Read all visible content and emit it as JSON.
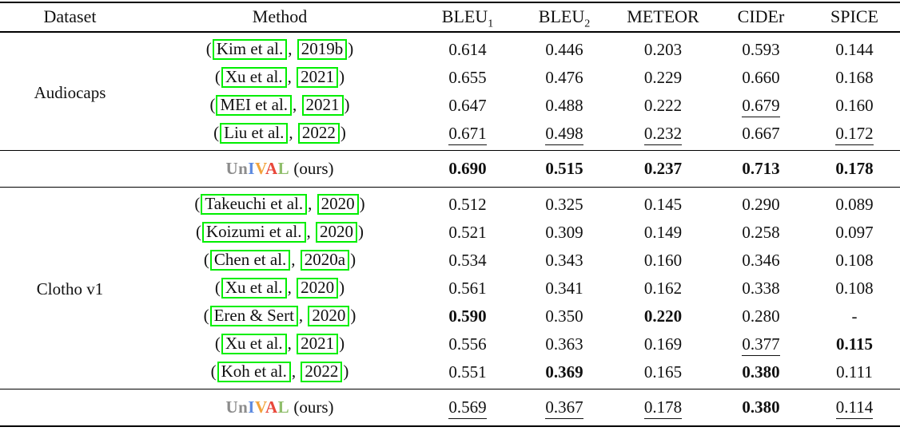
{
  "colors": {
    "citation_box_green": "#00ee00",
    "text": "#111111",
    "rule": "#000000"
  },
  "unival": {
    "parts": [
      {
        "t": "Un",
        "c": "#8C8C8C"
      },
      {
        "t": "I",
        "c": "#5E8BE0"
      },
      {
        "t": "V",
        "c": "#F2A33C"
      },
      {
        "t": "A",
        "c": "#E8483B"
      },
      {
        "t": "L",
        "c": "#8FBE6B"
      }
    ],
    "suffix": "(ours)"
  },
  "table": {
    "headers": [
      {
        "text": "Dataset"
      },
      {
        "text": "Method"
      },
      {
        "text": "BLEU",
        "sub": "1"
      },
      {
        "text": "BLEU",
        "sub": "2"
      },
      {
        "text": "METEOR"
      },
      {
        "text": "CIDEr"
      },
      {
        "text": "SPICE"
      }
    ],
    "sections": [
      {
        "dataset": "Audiocaps",
        "rows": [
          {
            "author": "Kim et al.",
            "year": "2019b",
            "values": [
              {
                "v": "0.614",
                "s": ""
              },
              {
                "v": "0.446",
                "s": ""
              },
              {
                "v": "0.203",
                "s": ""
              },
              {
                "v": "0.593",
                "s": ""
              },
              {
                "v": "0.144",
                "s": ""
              }
            ]
          },
          {
            "author": "Xu et al.",
            "year": "2021",
            "values": [
              {
                "v": "0.655",
                "s": ""
              },
              {
                "v": "0.476",
                "s": ""
              },
              {
                "v": "0.229",
                "s": ""
              },
              {
                "v": "0.660",
                "s": ""
              },
              {
                "v": "0.168",
                "s": ""
              }
            ]
          },
          {
            "author": "MEI et al.",
            "year": "2021",
            "values": [
              {
                "v": "0.647",
                "s": ""
              },
              {
                "v": "0.488",
                "s": ""
              },
              {
                "v": "0.222",
                "s": ""
              },
              {
                "v": "0.679",
                "s": "u"
              },
              {
                "v": "0.160",
                "s": ""
              }
            ]
          },
          {
            "author": "Liu et al.",
            "year": "2022",
            "values": [
              {
                "v": "0.671",
                "s": "u"
              },
              {
                "v": "0.498",
                "s": "u"
              },
              {
                "v": "0.232",
                "s": "u"
              },
              {
                "v": "0.667",
                "s": ""
              },
              {
                "v": "0.172",
                "s": "u"
              }
            ]
          }
        ],
        "ours": {
          "values": [
            {
              "v": "0.690",
              "s": "b"
            },
            {
              "v": "0.515",
              "s": "b"
            },
            {
              "v": "0.237",
              "s": "b"
            },
            {
              "v": "0.713",
              "s": "b"
            },
            {
              "v": "0.178",
              "s": "b"
            }
          ]
        }
      },
      {
        "dataset": "Clotho v1",
        "rows": [
          {
            "author": "Takeuchi et al.",
            "year": "2020",
            "values": [
              {
                "v": "0.512",
                "s": ""
              },
              {
                "v": "0.325",
                "s": ""
              },
              {
                "v": "0.145",
                "s": ""
              },
              {
                "v": "0.290",
                "s": ""
              },
              {
                "v": "0.089",
                "s": ""
              }
            ]
          },
          {
            "author": "Koizumi et al.",
            "year": "2020",
            "values": [
              {
                "v": "0.521",
                "s": ""
              },
              {
                "v": "0.309",
                "s": ""
              },
              {
                "v": "0.149",
                "s": ""
              },
              {
                "v": "0.258",
                "s": ""
              },
              {
                "v": "0.097",
                "s": ""
              }
            ]
          },
          {
            "author": "Chen et al.",
            "year": "2020a",
            "values": [
              {
                "v": "0.534",
                "s": ""
              },
              {
                "v": "0.343",
                "s": ""
              },
              {
                "v": "0.160",
                "s": ""
              },
              {
                "v": "0.346",
                "s": ""
              },
              {
                "v": "0.108",
                "s": ""
              }
            ]
          },
          {
            "author": "Xu et al.",
            "year": "2020",
            "values": [
              {
                "v": "0.561",
                "s": ""
              },
              {
                "v": "0.341",
                "s": ""
              },
              {
                "v": "0.162",
                "s": ""
              },
              {
                "v": "0.338",
                "s": ""
              },
              {
                "v": "0.108",
                "s": ""
              }
            ]
          },
          {
            "author": "Eren & Sert",
            "year": "2020",
            "values": [
              {
                "v": "0.590",
                "s": "b"
              },
              {
                "v": "0.350",
                "s": ""
              },
              {
                "v": "0.220",
                "s": "b"
              },
              {
                "v": "0.280",
                "s": ""
              },
              {
                "v": "-",
                "s": ""
              }
            ]
          },
          {
            "author": "Xu et al.",
            "year": "2021",
            "values": [
              {
                "v": "0.556",
                "s": ""
              },
              {
                "v": "0.363",
                "s": ""
              },
              {
                "v": "0.169",
                "s": ""
              },
              {
                "v": "0.377",
                "s": "u"
              },
              {
                "v": "0.115",
                "s": "b"
              }
            ]
          },
          {
            "author": "Koh et al.",
            "year": "2022",
            "values": [
              {
                "v": "0.551",
                "s": ""
              },
              {
                "v": "0.369",
                "s": "b"
              },
              {
                "v": "0.165",
                "s": ""
              },
              {
                "v": "0.380",
                "s": "b"
              },
              {
                "v": "0.111",
                "s": ""
              }
            ]
          }
        ],
        "ours": {
          "values": [
            {
              "v": "0.569",
              "s": "u"
            },
            {
              "v": "0.367",
              "s": "u"
            },
            {
              "v": "0.178",
              "s": "u"
            },
            {
              "v": "0.380",
              "s": "b"
            },
            {
              "v": "0.114",
              "s": "u"
            }
          ]
        }
      }
    ]
  }
}
